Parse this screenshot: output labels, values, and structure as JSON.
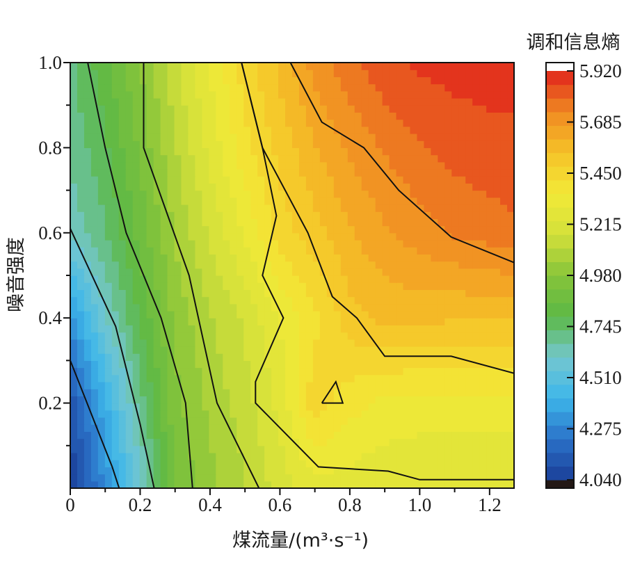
{
  "chart_data": {
    "type": "heatmap",
    "subtype": "filled-contour",
    "xlabel": "煤流量/(m³·s⁻¹)",
    "ylabel": "噪音强度",
    "colorbar_title": "调和信息熵",
    "xlim": [
      0,
      1.27
    ],
    "ylim": [
      0,
      1.0
    ],
    "x_ticks": [
      "0",
      "0.2",
      "0.4",
      "0.6",
      "0.8",
      "1.0",
      "1.2"
    ],
    "y_ticks": [
      "0.2",
      "0.4",
      "0.6",
      "0.8",
      "1.0"
    ],
    "colorbar_ticks": [
      "4.040",
      "4.275",
      "4.510",
      "4.745",
      "4.980",
      "5.215",
      "5.450",
      "5.685",
      "5.920"
    ],
    "colorbar_range": [
      4.04,
      5.92
    ],
    "colorscale": [
      "#1a3e98",
      "#2b72c8",
      "#3db6ea",
      "#74c7cf",
      "#5cb846",
      "#86c43a",
      "#d3e03a",
      "#f2e938",
      "#f5c228",
      "#f08a22",
      "#e0231c"
    ],
    "grid": {
      "x": [
        0,
        0.1,
        0.2,
        0.3,
        0.4,
        0.5,
        0.6,
        0.7,
        0.8,
        0.9,
        1.0,
        1.1,
        1.2,
        1.27
      ],
      "y": [
        0,
        0.2,
        0.4,
        0.6,
        0.8,
        1.0
      ],
      "z": [
        [
          4.04,
          4.3,
          4.58,
          4.92,
          5.02,
          5.1,
          5.2,
          5.26,
          5.26,
          5.24,
          5.23,
          5.23,
          5.23,
          5.23
        ],
        [
          4.12,
          4.4,
          4.7,
          4.96,
          5.06,
          5.14,
          5.25,
          5.46,
          5.38,
          5.34,
          5.33,
          5.33,
          5.33,
          5.33
        ],
        [
          4.32,
          4.6,
          4.8,
          5.0,
          5.1,
          5.18,
          5.3,
          5.4,
          5.52,
          5.56,
          5.56,
          5.55,
          5.55,
          5.55
        ],
        [
          4.62,
          4.72,
          4.88,
          5.05,
          5.18,
          5.3,
          5.45,
          5.52,
          5.6,
          5.66,
          5.7,
          5.74,
          5.76,
          5.78
        ],
        [
          4.68,
          4.78,
          4.93,
          5.1,
          5.25,
          5.4,
          5.5,
          5.6,
          5.68,
          5.74,
          5.79,
          5.82,
          5.84,
          5.84
        ],
        [
          4.72,
          4.83,
          4.98,
          5.15,
          5.3,
          5.45,
          5.56,
          5.7,
          5.78,
          5.84,
          5.87,
          5.88,
          5.88,
          5.88
        ]
      ]
    },
    "contour_lines": [
      [
        [
          0,
          0.3
        ],
        [
          0.12,
          0.05
        ],
        [
          0.14,
          0
        ]
      ],
      [
        [
          0,
          0.61
        ],
        [
          0.13,
          0.38
        ],
        [
          0.2,
          0.15
        ],
        [
          0.24,
          0
        ]
      ],
      [
        [
          0.05,
          1.0
        ],
        [
          0.1,
          0.8
        ],
        [
          0.16,
          0.6
        ],
        [
          0.26,
          0.4
        ],
        [
          0.33,
          0.2
        ],
        [
          0.35,
          0
        ]
      ],
      [
        [
          0.21,
          1.0
        ],
        [
          0.21,
          0.8
        ],
        [
          0.34,
          0.5
        ],
        [
          0.42,
          0.2
        ],
        [
          0.54,
          0
        ]
      ],
      [
        [
          0.49,
          1.0
        ],
        [
          0.55,
          0.8
        ],
        [
          0.68,
          0.6
        ],
        [
          0.75,
          0.45
        ],
        [
          0.82,
          0.4
        ],
        [
          0.9,
          0.31
        ],
        [
          1.09,
          0.31
        ],
        [
          1.27,
          0.27
        ]
      ],
      [
        [
          0.49,
          1.0
        ],
        [
          0.55,
          0.8
        ],
        [
          0.59,
          0.64
        ],
        [
          0.55,
          0.5
        ],
        [
          0.61,
          0.4
        ],
        [
          0.53,
          0.25
        ],
        [
          0.53,
          0.2
        ],
        [
          0.71,
          0.05
        ],
        [
          0.91,
          0.04
        ],
        [
          1.0,
          0.02
        ],
        [
          1.27,
          0.02
        ]
      ],
      [
        [
          0.63,
          1.0
        ],
        [
          0.72,
          0.86
        ],
        [
          0.84,
          0.8
        ],
        [
          0.94,
          0.7
        ],
        [
          1.09,
          0.59
        ],
        [
          1.27,
          0.53
        ]
      ],
      [
        [
          0.72,
          0.2
        ],
        [
          0.76,
          0.25
        ],
        [
          0.78,
          0.2
        ],
        [
          0.72,
          0.2
        ]
      ]
    ]
  }
}
